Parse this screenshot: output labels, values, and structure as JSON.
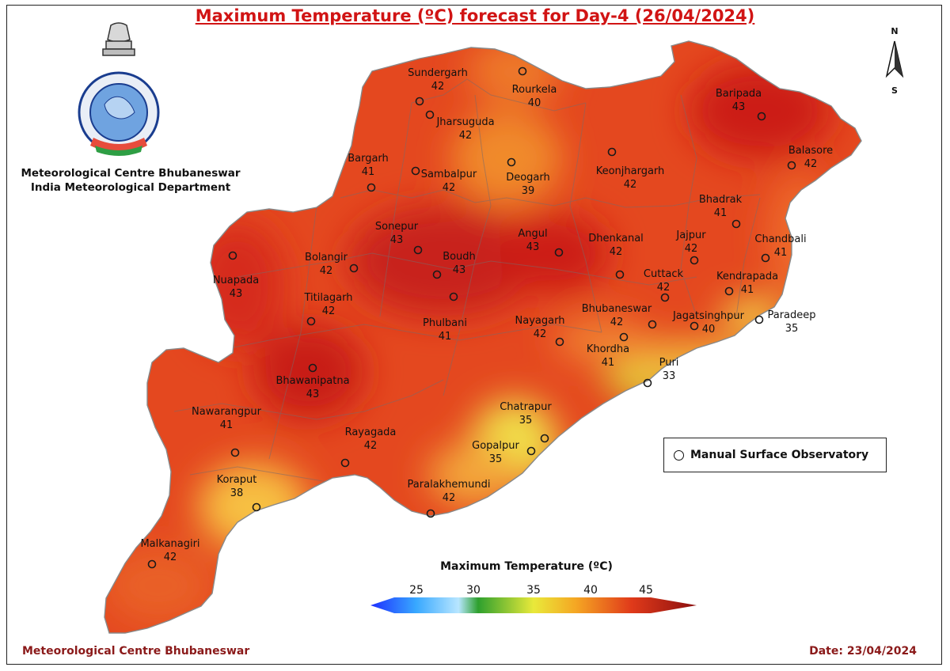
{
  "title": "Maximum Temperature (ºC) forecast for Day-4 (26/04/2024)",
  "organization": {
    "line1": "Meteorological Centre Bhubaneswar",
    "line2": "India Meteorological Department"
  },
  "compass": {
    "north": "N",
    "south": "S"
  },
  "legend": {
    "label": "Manual Surface Observatory"
  },
  "colorbar": {
    "title": "Maximum Temperature (ºC)",
    "ticks": [
      "25",
      "30",
      "35",
      "40",
      "45"
    ],
    "colors": [
      "#1e2fff",
      "#38a8ff",
      "#b8e6ff",
      "#2ea02e",
      "#e9e93a",
      "#f5a623",
      "#e03a1a",
      "#8b0f0f"
    ]
  },
  "footer": {
    "left": "Meteorological Centre Bhubaneswar",
    "right": "Date: 23/04/2024"
  },
  "stations": [
    {
      "name": "Sundergarh",
      "value": "42"
    },
    {
      "name": "Rourkela",
      "value": "40"
    },
    {
      "name": "Baripada",
      "value": "43"
    },
    {
      "name": "Jharsuguda",
      "value": "42"
    },
    {
      "name": "Balasore",
      "value": "42"
    },
    {
      "name": "Bargarh",
      "value": "41"
    },
    {
      "name": "Sambalpur",
      "value": "42"
    },
    {
      "name": "Deogarh",
      "value": "39"
    },
    {
      "name": "Keonjhargarh",
      "value": "42"
    },
    {
      "name": "Bhadrak",
      "value": "41"
    },
    {
      "name": "Sonepur",
      "value": "43"
    },
    {
      "name": "Angul",
      "value": "43"
    },
    {
      "name": "Dhenkanal",
      "value": "42"
    },
    {
      "name": "Jajpur",
      "value": "42"
    },
    {
      "name": "Chandbali",
      "value": "41"
    },
    {
      "name": "Bolangir",
      "value": "42"
    },
    {
      "name": "Boudh",
      "value": "43"
    },
    {
      "name": "Nuapada",
      "value": "43"
    },
    {
      "name": "Cuttack",
      "value": "42"
    },
    {
      "name": "Kendrapada",
      "value": "41"
    },
    {
      "name": "Titilagarh",
      "value": "42"
    },
    {
      "name": "Paradeep",
      "value": "35"
    },
    {
      "name": "Bhubaneswar",
      "value": "42"
    },
    {
      "name": "Jagatsinghpur",
      "value": "40"
    },
    {
      "name": "Phulbani",
      "value": "41"
    },
    {
      "name": "Nayagarh",
      "value": "42"
    },
    {
      "name": "Khordha",
      "value": "41"
    },
    {
      "name": "Bhawanipatna",
      "value": "43"
    },
    {
      "name": "Puri",
      "value": "33"
    },
    {
      "name": "Chatrapur",
      "value": "35"
    },
    {
      "name": "Nawarangpur",
      "value": "41"
    },
    {
      "name": "Rayagada",
      "value": "42"
    },
    {
      "name": "Gopalpur",
      "value": "35"
    },
    {
      "name": "Koraput",
      "value": "38"
    },
    {
      "name": "Paralakhemundi",
      "value": "42"
    },
    {
      "name": "Malkanagiri",
      "value": "42"
    }
  ]
}
